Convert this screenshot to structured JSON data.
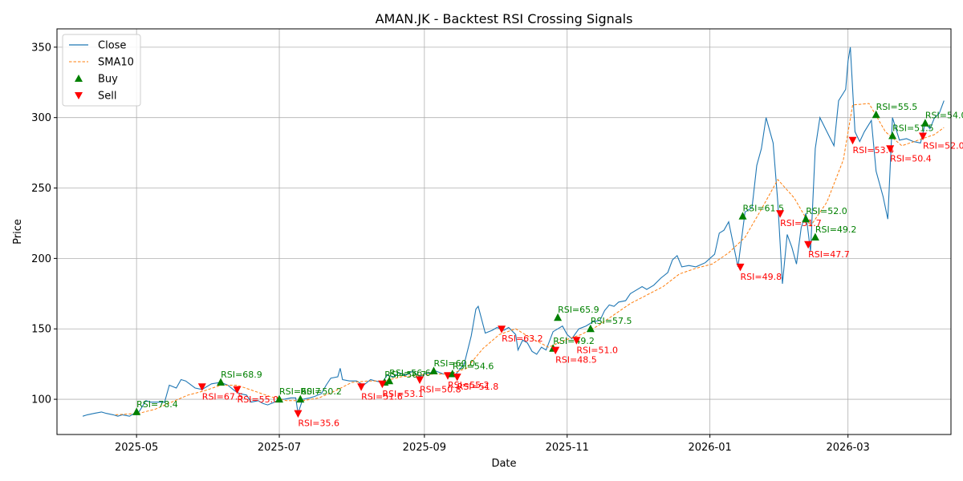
{
  "chart_data": {
    "type": "line",
    "title": "AMAN.JK - Backtest RSI Crossing Signals",
    "xlabel": "Date",
    "ylabel": "Price",
    "xlim": [
      "2025-03-28",
      "2026-04-14"
    ],
    "ylim": [
      75,
      363
    ],
    "grid": true,
    "legend_placement": "upper left",
    "x_ticks": [
      "2025-05-01",
      "2025-07-01",
      "2025-09-01",
      "2025-11-01",
      "2026-01-01",
      "2026-03-01"
    ],
    "x_tick_labels": [
      "2025-05",
      "2025-07",
      "2025-09",
      "2025-11",
      "2026-01",
      "2026-03"
    ],
    "y_ticks": [
      100,
      150,
      200,
      250,
      300,
      350
    ],
    "y_tick_labels": [
      "100",
      "150",
      "200",
      "250",
      "300",
      "350"
    ],
    "colors": {
      "close": "#1f77b4",
      "sma": "#ff7f0e",
      "buy": "#008000",
      "sell": "#ff0000"
    },
    "legend": [
      {
        "label": "Close",
        "style": "line"
      },
      {
        "label": "SMA10",
        "style": "dashed"
      },
      {
        "label": "Buy",
        "style": "triangle-up"
      },
      {
        "label": "Sell",
        "style": "triangle-down"
      }
    ],
    "series": [
      {
        "name": "Close",
        "points": [
          [
            "2025-04-08",
            88
          ],
          [
            "2025-04-10",
            89
          ],
          [
            "2025-04-13",
            90
          ],
          [
            "2025-04-16",
            91
          ],
          [
            "2025-04-18",
            90
          ],
          [
            "2025-04-21",
            89
          ],
          [
            "2025-04-23",
            88
          ],
          [
            "2025-04-25",
            89
          ],
          [
            "2025-04-28",
            88
          ],
          [
            "2025-04-30",
            90
          ],
          [
            "2025-05-02",
            91
          ],
          [
            "2025-05-05",
            99
          ],
          [
            "2025-05-07",
            98
          ],
          [
            "2025-05-09",
            98
          ],
          [
            "2025-05-13",
            98
          ],
          [
            "2025-05-15",
            110
          ],
          [
            "2025-05-18",
            108
          ],
          [
            "2025-05-20",
            114
          ],
          [
            "2025-05-22",
            113
          ],
          [
            "2025-05-26",
            108
          ],
          [
            "2025-05-29",
            107
          ],
          [
            "2025-06-02",
            111
          ],
          [
            "2025-06-06",
            112
          ],
          [
            "2025-06-09",
            110
          ],
          [
            "2025-06-12",
            106
          ],
          [
            "2025-06-14",
            104
          ],
          [
            "2025-06-17",
            103
          ],
          [
            "2025-06-19",
            98
          ],
          [
            "2025-06-22",
            99
          ],
          [
            "2025-06-24",
            97
          ],
          [
            "2025-06-26",
            96
          ],
          [
            "2025-06-29",
            98
          ],
          [
            "2025-07-01",
            100
          ],
          [
            "2025-07-03",
            100
          ],
          [
            "2025-07-06",
            101
          ],
          [
            "2025-07-08",
            101
          ],
          [
            "2025-07-09",
            90
          ],
          [
            "2025-07-11",
            100
          ],
          [
            "2025-07-14",
            101
          ],
          [
            "2025-07-16",
            102
          ],
          [
            "2025-07-19",
            104
          ],
          [
            "2025-07-21",
            110
          ],
          [
            "2025-07-23",
            115
          ],
          [
            "2025-07-26",
            116
          ],
          [
            "2025-07-27",
            122
          ],
          [
            "2025-07-28",
            114
          ],
          [
            "2025-07-31",
            113
          ],
          [
            "2025-08-03",
            113
          ],
          [
            "2025-08-06",
            110
          ],
          [
            "2025-08-09",
            114
          ],
          [
            "2025-08-11",
            113
          ],
          [
            "2025-08-14",
            112
          ],
          [
            "2025-08-16",
            117
          ],
          [
            "2025-08-19",
            116
          ],
          [
            "2025-08-21",
            119
          ],
          [
            "2025-08-24",
            117
          ],
          [
            "2025-08-27",
            120
          ],
          [
            "2025-08-30",
            116
          ],
          [
            "2025-09-01",
            118
          ],
          [
            "2025-09-04",
            119
          ],
          [
            "2025-09-06",
            120
          ],
          [
            "2025-09-09",
            118
          ],
          [
            "2025-09-12",
            118
          ],
          [
            "2025-09-14",
            117
          ],
          [
            "2025-09-18",
            125
          ],
          [
            "2025-09-21",
            145
          ],
          [
            "2025-09-23",
            164
          ],
          [
            "2025-09-24",
            166
          ],
          [
            "2025-09-27",
            147
          ],
          [
            "2025-09-30",
            149
          ],
          [
            "2025-10-02",
            151
          ],
          [
            "2025-10-05",
            149
          ],
          [
            "2025-10-07",
            151
          ],
          [
            "2025-10-10",
            146
          ],
          [
            "2025-10-11",
            135
          ],
          [
            "2025-10-13",
            142
          ],
          [
            "2025-10-15",
            140
          ],
          [
            "2025-10-17",
            134
          ],
          [
            "2025-10-19",
            132
          ],
          [
            "2025-10-21",
            137
          ],
          [
            "2025-10-23",
            135
          ],
          [
            "2025-10-26",
            148
          ],
          [
            "2025-10-28",
            150
          ],
          [
            "2025-10-30",
            152
          ],
          [
            "2025-11-01",
            146
          ],
          [
            "2025-11-03",
            143
          ],
          [
            "2025-11-06",
            150
          ],
          [
            "2025-11-09",
            152
          ],
          [
            "2025-11-12",
            155
          ],
          [
            "2025-11-15",
            156
          ],
          [
            "2025-11-17",
            163
          ],
          [
            "2025-11-19",
            167
          ],
          [
            "2025-11-21",
            166
          ],
          [
            "2025-11-23",
            169
          ],
          [
            "2025-11-26",
            170
          ],
          [
            "2025-11-28",
            175
          ],
          [
            "2025-11-30",
            177
          ],
          [
            "2025-12-03",
            180
          ],
          [
            "2025-12-05",
            178
          ],
          [
            "2025-12-08",
            181
          ],
          [
            "2025-12-11",
            186
          ],
          [
            "2025-12-14",
            190
          ],
          [
            "2025-12-16",
            199
          ],
          [
            "2025-12-18",
            202
          ],
          [
            "2025-12-20",
            194
          ],
          [
            "2025-12-23",
            195
          ],
          [
            "2025-12-26",
            194
          ],
          [
            "2025-12-30",
            197
          ],
          [
            "2026-01-03",
            203
          ],
          [
            "2026-01-05",
            218
          ],
          [
            "2026-01-07",
            220
          ],
          [
            "2026-01-09",
            226
          ],
          [
            "2026-01-11",
            210
          ],
          [
            "2026-01-13",
            194
          ],
          [
            "2026-01-16",
            233
          ],
          [
            "2026-01-19",
            236
          ],
          [
            "2026-01-21",
            266
          ],
          [
            "2026-01-23",
            278
          ],
          [
            "2026-01-25",
            300
          ],
          [
            "2026-01-28",
            282
          ],
          [
            "2026-01-30",
            240
          ],
          [
            "2026-02-01",
            182
          ],
          [
            "2026-02-03",
            217
          ],
          [
            "2026-02-05",
            208
          ],
          [
            "2026-02-07",
            196
          ],
          [
            "2026-02-09",
            222
          ],
          [
            "2026-02-11",
            232
          ],
          [
            "2026-02-13",
            205
          ],
          [
            "2026-02-15",
            278
          ],
          [
            "2026-02-17",
            300
          ],
          [
            "2026-02-20",
            290
          ],
          [
            "2026-02-23",
            280
          ],
          [
            "2026-02-25",
            312
          ],
          [
            "2026-02-28",
            320
          ],
          [
            "2026-03-01",
            340
          ],
          [
            "2026-03-02",
            350
          ],
          [
            "2026-03-04",
            290
          ],
          [
            "2026-03-06",
            283
          ],
          [
            "2026-03-08",
            290
          ],
          [
            "2026-03-11",
            298
          ],
          [
            "2026-03-13",
            262
          ],
          [
            "2026-03-16",
            244
          ],
          [
            "2026-03-18",
            228
          ],
          [
            "2026-03-20",
            300
          ],
          [
            "2026-03-23",
            284
          ],
          [
            "2026-03-26",
            285
          ],
          [
            "2026-03-29",
            283
          ],
          [
            "2026-04-01",
            282
          ],
          [
            "2026-04-03",
            296
          ],
          [
            "2026-04-05",
            292
          ],
          [
            "2026-04-07",
            300
          ],
          [
            "2026-04-09",
            303
          ],
          [
            "2026-04-11",
            312
          ]
        ]
      },
      {
        "name": "SMA10",
        "points": [
          [
            "2025-04-22",
            89
          ],
          [
            "2025-05-02",
            90
          ],
          [
            "2025-05-09",
            93
          ],
          [
            "2025-05-16",
            98
          ],
          [
            "2025-05-23",
            103
          ],
          [
            "2025-05-30",
            106
          ],
          [
            "2025-06-06",
            110
          ],
          [
            "2025-06-13",
            110
          ],
          [
            "2025-06-20",
            106
          ],
          [
            "2025-06-27",
            102
          ],
          [
            "2025-07-04",
            99
          ],
          [
            "2025-07-11",
            99
          ],
          [
            "2025-07-18",
            101
          ],
          [
            "2025-07-25",
            106
          ],
          [
            "2025-08-01",
            112
          ],
          [
            "2025-08-08",
            113
          ],
          [
            "2025-08-15",
            113
          ],
          [
            "2025-08-22",
            116
          ],
          [
            "2025-08-29",
            117
          ],
          [
            "2025-09-05",
            118
          ],
          [
            "2025-09-12",
            118
          ],
          [
            "2025-09-19",
            122
          ],
          [
            "2025-09-26",
            136
          ],
          [
            "2025-10-03",
            146
          ],
          [
            "2025-10-10",
            150
          ],
          [
            "2025-10-17",
            143
          ],
          [
            "2025-10-24",
            137
          ],
          [
            "2025-10-31",
            142
          ],
          [
            "2025-11-07",
            146
          ],
          [
            "2025-11-14",
            152
          ],
          [
            "2025-11-21",
            160
          ],
          [
            "2025-11-28",
            168
          ],
          [
            "2025-12-05",
            174
          ],
          [
            "2025-12-12",
            180
          ],
          [
            "2025-12-19",
            189
          ],
          [
            "2025-12-26",
            193
          ],
          [
            "2026-01-02",
            196
          ],
          [
            "2026-01-09",
            204
          ],
          [
            "2026-01-16",
            215
          ],
          [
            "2026-01-23",
            235
          ],
          [
            "2026-01-30",
            256
          ],
          [
            "2026-02-06",
            243
          ],
          [
            "2026-02-13",
            223
          ],
          [
            "2026-02-20",
            240
          ],
          [
            "2026-02-27",
            270
          ],
          [
            "2026-03-03",
            309
          ],
          [
            "2026-03-10",
            310
          ],
          [
            "2026-03-17",
            290
          ],
          [
            "2026-03-24",
            280
          ],
          [
            "2026-03-31",
            284
          ],
          [
            "2026-04-07",
            288
          ],
          [
            "2026-04-11",
            293
          ]
        ]
      }
    ],
    "signals": [
      {
        "type": "buy",
        "date": "2025-05-01",
        "price": 91,
        "label": "RSI=78.4"
      },
      {
        "type": "sell",
        "date": "2025-05-29",
        "price": 109,
        "label": "RSI=67.5"
      },
      {
        "type": "buy",
        "date": "2025-06-06",
        "price": 112,
        "label": "RSI=68.9"
      },
      {
        "type": "sell",
        "date": "2025-06-13",
        "price": 107,
        "label": "RSI=55.0"
      },
      {
        "type": "buy",
        "date": "2025-07-01",
        "price": 100,
        "label": "RSI=60.7"
      },
      {
        "type": "sell",
        "date": "2025-07-09",
        "price": 90,
        "label": "RSI=35.6"
      },
      {
        "type": "buy",
        "date": "2025-07-10",
        "price": 100,
        "label": "RSI=50.2"
      },
      {
        "type": "sell",
        "date": "2025-08-05",
        "price": 109,
        "label": "RSI=51.6"
      },
      {
        "type": "buy",
        "date": "2025-08-15",
        "price": 112,
        "label": "RSI=56.7"
      },
      {
        "type": "sell",
        "date": "2025-08-14",
        "price": 111,
        "label": "RSI=53.1"
      },
      {
        "type": "buy",
        "date": "2025-08-17",
        "price": 113,
        "label": "RSI=56.6"
      },
      {
        "type": "sell",
        "date": "2025-08-30",
        "price": 114,
        "label": "RSI=50.8"
      },
      {
        "type": "buy",
        "date": "2025-09-05",
        "price": 120,
        "label": "RSI=60.0"
      },
      {
        "type": "sell",
        "date": "2025-09-11",
        "price": 117,
        "label": "RSI=55.2"
      },
      {
        "type": "buy",
        "date": "2025-09-13",
        "price": 118,
        "label": "RSI=54.6"
      },
      {
        "type": "sell",
        "date": "2025-09-15",
        "price": 116,
        "label": "RSI=51.8"
      },
      {
        "type": "sell",
        "date": "2025-10-04",
        "price": 150,
        "label": "RSI=63.2"
      },
      {
        "type": "buy",
        "date": "2025-10-26",
        "price": 136,
        "label": "RSI=49.2"
      },
      {
        "type": "sell",
        "date": "2025-10-27",
        "price": 135,
        "label": "RSI=48.5"
      },
      {
        "type": "buy",
        "date": "2025-10-28",
        "price": 158,
        "label": "RSI=65.9"
      },
      {
        "type": "sell",
        "date": "2025-11-05",
        "price": 142,
        "label": "RSI=51.0"
      },
      {
        "type": "buy",
        "date": "2025-11-11",
        "price": 150,
        "label": "RSI=57.5"
      },
      {
        "type": "sell",
        "date": "2026-01-14",
        "price": 194,
        "label": "RSI=49.8"
      },
      {
        "type": "buy",
        "date": "2026-01-15",
        "price": 230,
        "label": "RSI=61.5"
      },
      {
        "type": "sell",
        "date": "2026-01-31",
        "price": 232,
        "label": "RSI=51.7"
      },
      {
        "type": "buy",
        "date": "2026-02-11",
        "price": 228,
        "label": "RSI=52.0"
      },
      {
        "type": "sell",
        "date": "2026-02-12",
        "price": 210,
        "label": "RSI=47.7"
      },
      {
        "type": "buy",
        "date": "2026-02-15",
        "price": 215,
        "label": "RSI=49.2"
      },
      {
        "type": "sell",
        "date": "2026-03-03",
        "price": 284,
        "label": "RSI=53.4"
      },
      {
        "type": "buy",
        "date": "2026-03-13",
        "price": 302,
        "label": "RSI=55.5"
      },
      {
        "type": "sell",
        "date": "2026-03-19",
        "price": 278,
        "label": "RSI=50.4"
      },
      {
        "type": "buy",
        "date": "2026-03-20",
        "price": 287,
        "label": "RSI=51.5"
      },
      {
        "type": "sell",
        "date": "2026-04-02",
        "price": 287,
        "label": "RSI=52.0"
      },
      {
        "type": "buy",
        "date": "2026-04-03",
        "price": 296,
        "label": "RSI=54.0"
      }
    ]
  }
}
